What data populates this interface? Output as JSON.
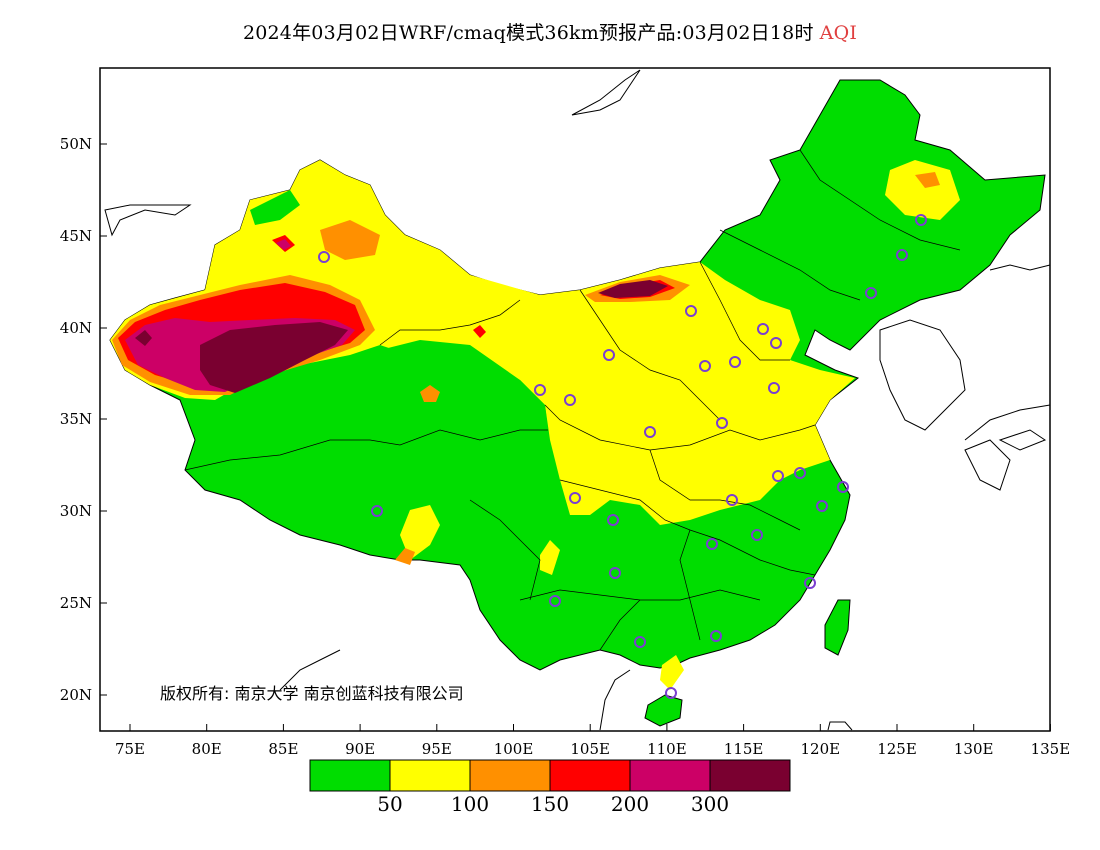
{
  "title": {
    "main": "2024年03月02日WRF/cmaq模式36km预报产品:03月02日18时",
    "variable": "AQI"
  },
  "axes": {
    "lat_labels": [
      "50N",
      "45N",
      "40N",
      "35N",
      "30N",
      "25N",
      "20N"
    ],
    "lon_labels": [
      "75E",
      "80E",
      "85E",
      "90E",
      "95E",
      "100E",
      "105E",
      "110E",
      "115E",
      "120E",
      "125E",
      "130E",
      "135E"
    ]
  },
  "colorbar": {
    "colors": [
      "#00dd00",
      "#ffff00",
      "#ff9000",
      "#ff0000",
      "#cc0066",
      "#7a0030"
    ],
    "tick_labels": [
      "50",
      "100",
      "150",
      "200",
      "300"
    ]
  },
  "copyright": "版权所有: 南京大学 南京创蓝科技有限公司"
}
